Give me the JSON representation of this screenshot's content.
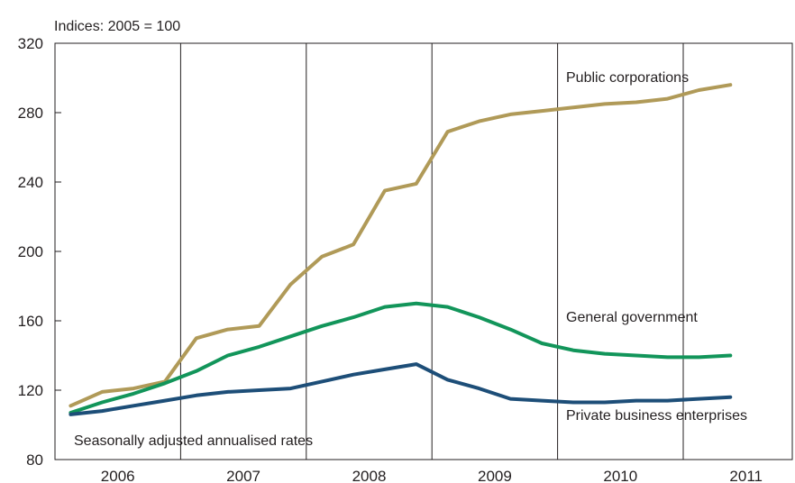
{
  "chart_data": {
    "type": "line",
    "units_label": "Indices: 2005 = 100",
    "note": "Seasonally adjusted annualised rates",
    "ylim": [
      80,
      320
    ],
    "yticks": [
      80,
      120,
      160,
      200,
      240,
      280,
      320
    ],
    "year_labels": [
      "2006",
      "2007",
      "2008",
      "2009",
      "2010",
      "2011"
    ],
    "x": [
      "2006 Q1",
      "2006 Q2",
      "2006 Q3",
      "2006 Q4",
      "2007 Q1",
      "2007 Q2",
      "2007 Q3",
      "2007 Q4",
      "2008 Q1",
      "2008 Q2",
      "2008 Q3",
      "2008 Q4",
      "2009 Q1",
      "2009 Q2",
      "2009 Q3",
      "2009 Q4",
      "2010 Q1",
      "2010 Q2",
      "2010 Q3",
      "2010 Q4",
      "2011 Q1",
      "2011 Q2"
    ],
    "series": [
      {
        "name": "Public corporations",
        "color": "#b09a58",
        "values": [
          111,
          119,
          121,
          125,
          150,
          155,
          157,
          181,
          197,
          204,
          235,
          239,
          269,
          275,
          279,
          281,
          283,
          285,
          286,
          288,
          293,
          296
        ]
      },
      {
        "name": "General government",
        "color": "#12955a",
        "values": [
          107,
          113,
          118,
          124,
          131,
          140,
          145,
          151,
          157,
          162,
          168,
          170,
          168,
          162,
          155,
          147,
          143,
          141,
          140,
          139,
          139,
          140
        ]
      },
      {
        "name": "Private business enterprises",
        "color": "#1d4e78",
        "values": [
          106,
          108,
          111,
          114,
          117,
          119,
          120,
          121,
          125,
          129,
          132,
          135,
          126,
          121,
          115,
          114,
          113,
          113,
          114,
          114,
          115,
          116
        ]
      }
    ],
    "grid": "vertical year dividers",
    "legend": "direct labels on lines"
  }
}
